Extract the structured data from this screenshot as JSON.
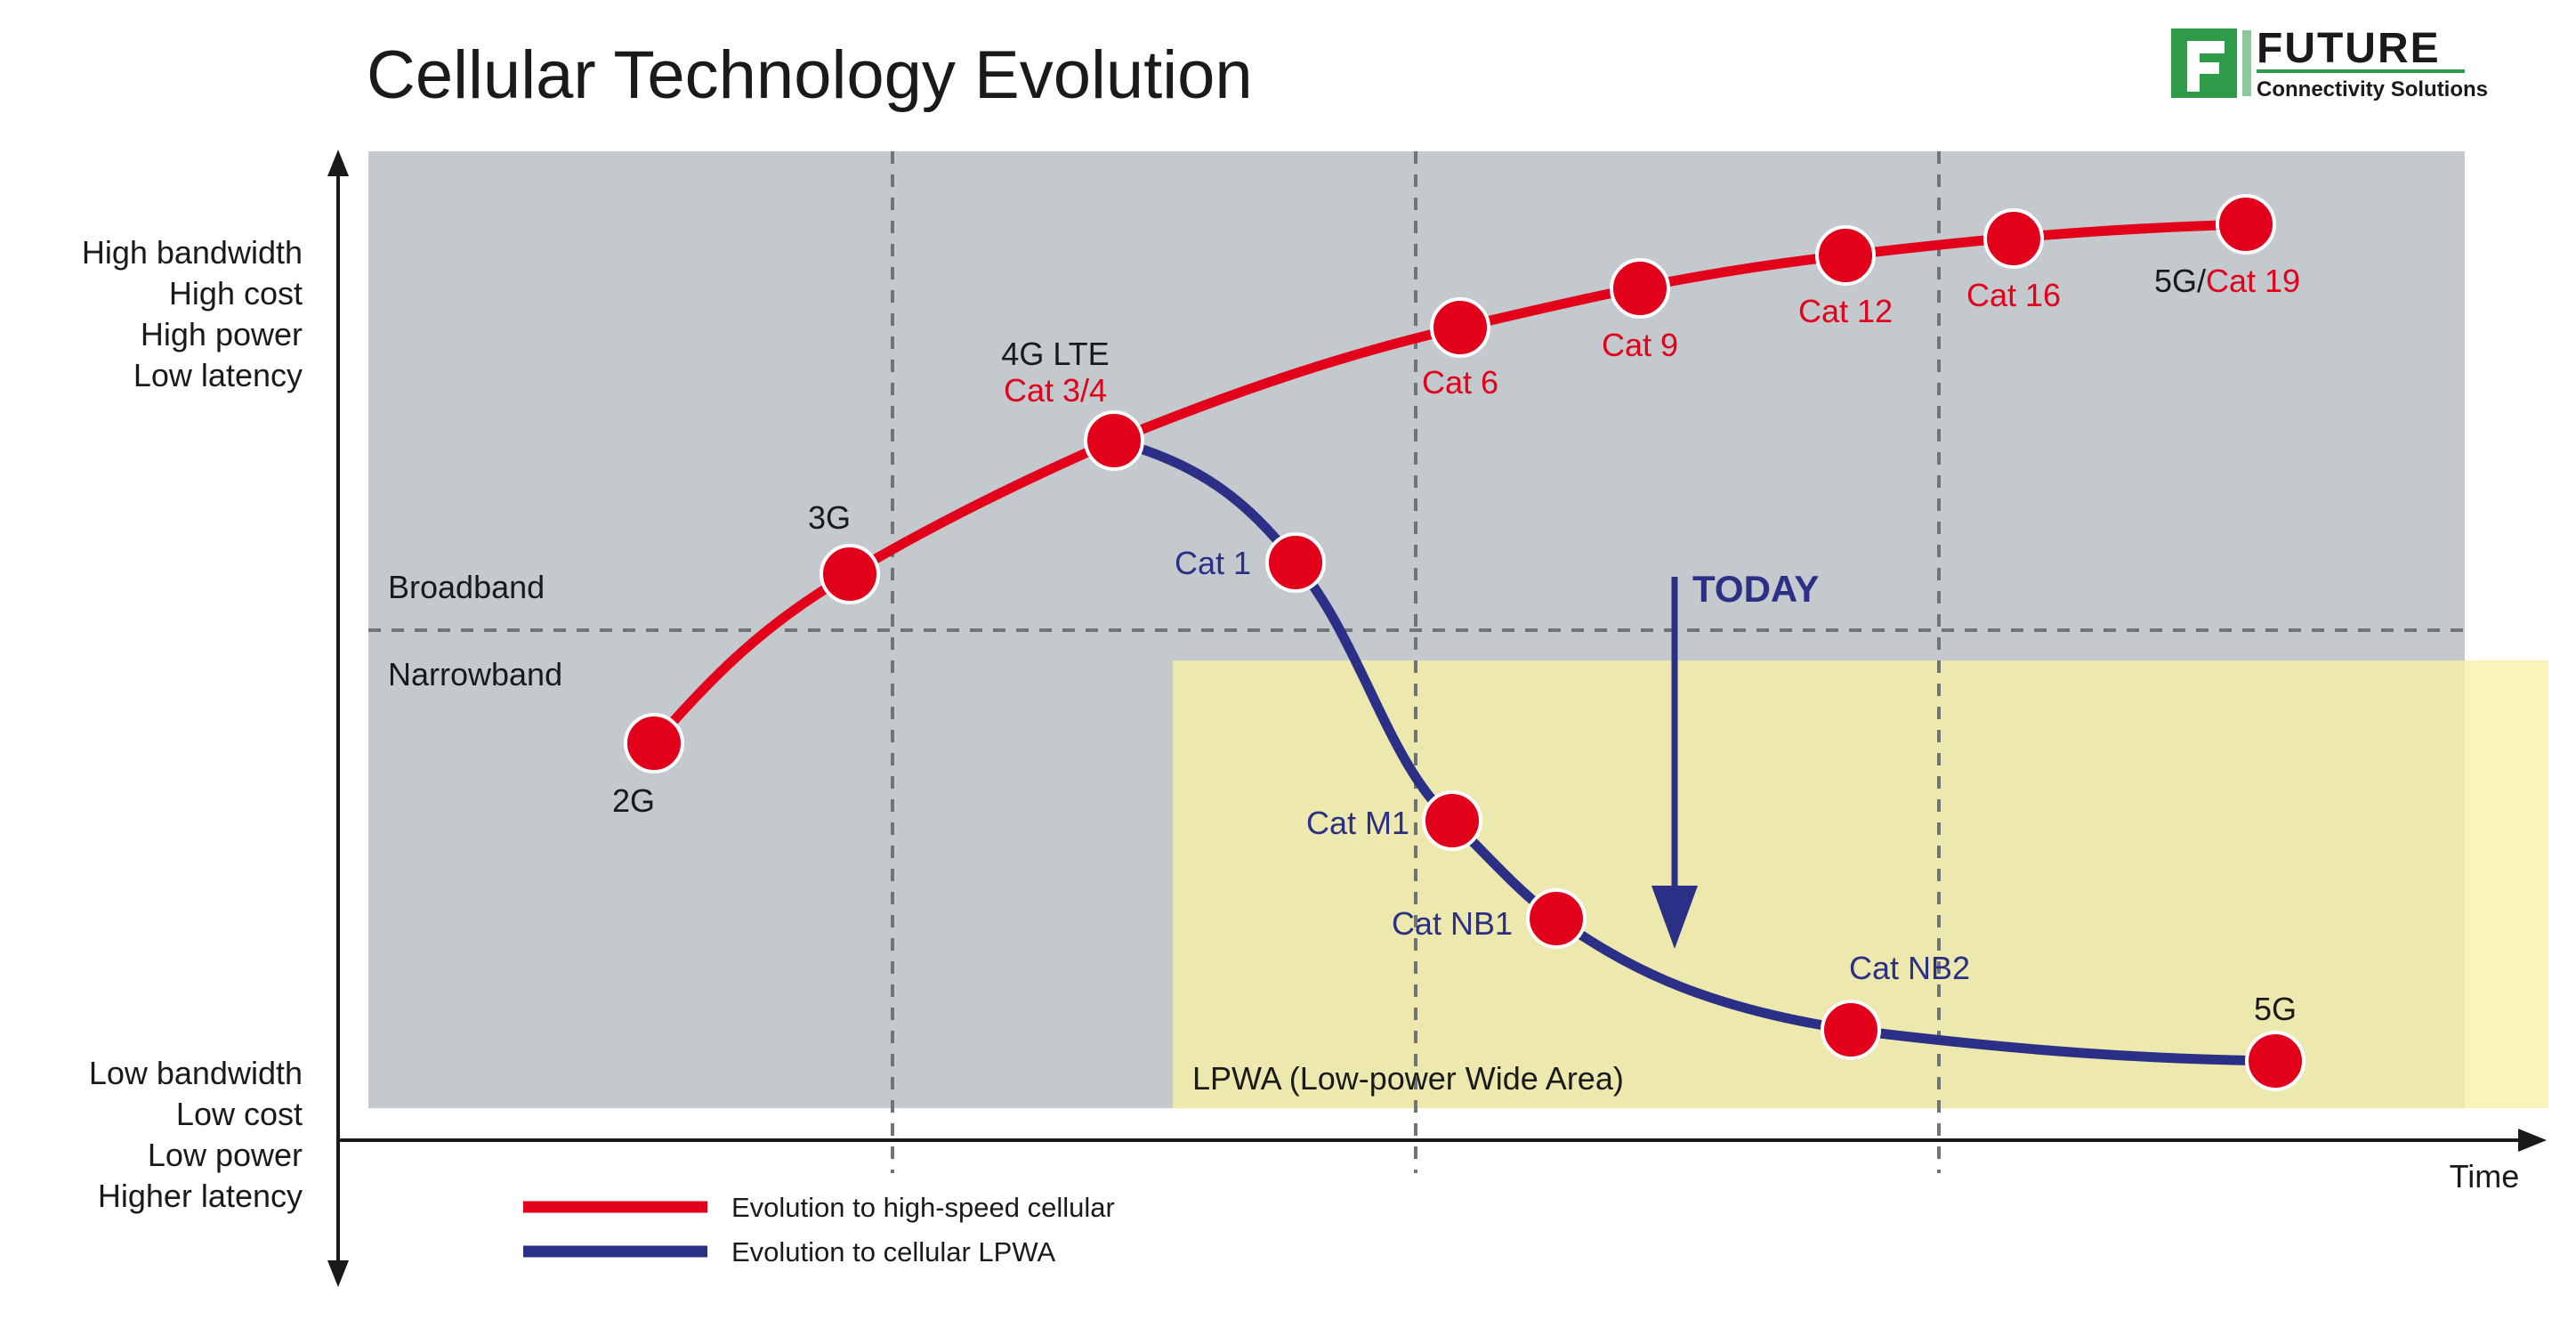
{
  "title": "Cellular Technology Evolution",
  "logo": {
    "name": "FUTURE",
    "tagline": "Connectivity Solutions",
    "mark": "F",
    "brand_color": "#2e9b4a"
  },
  "y_axis": {
    "top_labels": [
      "High bandwidth",
      "High cost",
      "High power",
      "Low latency"
    ],
    "bottom_labels": [
      "Low bandwidth",
      "Low cost",
      "Low power",
      "Higher latency"
    ]
  },
  "x_axis": {
    "label": "Time"
  },
  "regions": {
    "broadband": "Broadband",
    "narrowband": "Narrowband",
    "lpwa": "LPWA (Low-power Wide Area)"
  },
  "today": {
    "label": "TODAY",
    "color": "#2b2f86"
  },
  "colors": {
    "high_speed": "#e2001a",
    "lpwa": "#2b2f86",
    "node": "#e2001a",
    "plot_bg": "#c3c9cd",
    "lpwa_bg": "#f7f1a5",
    "axis": "#1a1a1a"
  },
  "high_speed_nodes": [
    {
      "id": "2g",
      "parts": [
        {
          "text": "2G",
          "tone": "dark"
        }
      ]
    },
    {
      "id": "3g",
      "parts": [
        {
          "text": "3G",
          "tone": "dark"
        }
      ]
    },
    {
      "id": "4g-lte",
      "lines": [
        [
          {
            "text": "4G LTE",
            "tone": "dark"
          }
        ],
        [
          {
            "text": "Cat 3/4",
            "tone": "red"
          }
        ]
      ]
    },
    {
      "id": "cat-6",
      "parts": [
        {
          "text": "Cat 6",
          "tone": "red"
        }
      ]
    },
    {
      "id": "cat-9",
      "parts": [
        {
          "text": "Cat 9",
          "tone": "red"
        }
      ]
    },
    {
      "id": "cat-12",
      "parts": [
        {
          "text": "Cat 12",
          "tone": "red"
        }
      ]
    },
    {
      "id": "cat-16",
      "parts": [
        {
          "text": "Cat 16",
          "tone": "red"
        }
      ]
    },
    {
      "id": "5g-cat-19",
      "parts": [
        {
          "text": "5G/",
          "tone": "dark"
        },
        {
          "text": "Cat 19",
          "tone": "red"
        }
      ]
    }
  ],
  "lpwa_nodes": [
    {
      "id": "cat-1",
      "parts": [
        {
          "text": "Cat 1",
          "tone": "blue"
        }
      ]
    },
    {
      "id": "cat-m1",
      "parts": [
        {
          "text": "Cat M1",
          "tone": "blue"
        }
      ]
    },
    {
      "id": "cat-nb1",
      "parts": [
        {
          "text": "Cat NB1",
          "tone": "blue"
        }
      ]
    },
    {
      "id": "cat-nb2",
      "parts": [
        {
          "text": "Cat NB2",
          "tone": "blue"
        }
      ]
    },
    {
      "id": "5g-lpwa",
      "parts": [
        {
          "text": "5G",
          "tone": "dark"
        }
      ]
    }
  ],
  "legend": [
    {
      "label": "Evolution to high-speed cellular",
      "color": "#e2001a"
    },
    {
      "label": "Evolution to cellular LPWA",
      "color": "#2b2f86"
    }
  ]
}
